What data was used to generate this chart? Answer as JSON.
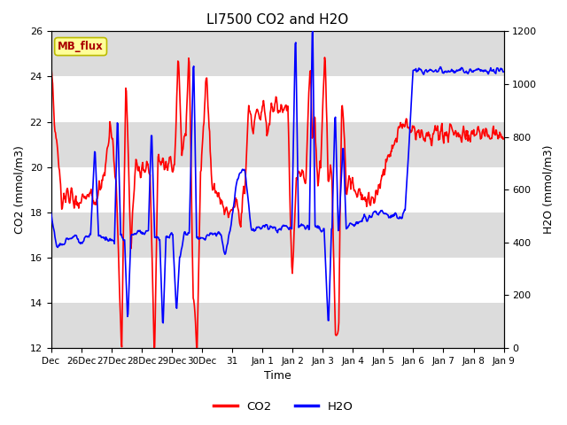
{
  "title": "LI7500 CO2 and H2O",
  "xlabel": "Time",
  "ylabel_left": "CO2 (mmol/m3)",
  "ylabel_right": "H2O (mmol/m3)",
  "ylim_left": [
    12,
    26
  ],
  "ylim_right": [
    0,
    1200
  ],
  "yticks_left": [
    12,
    14,
    16,
    18,
    20,
    22,
    24,
    26
  ],
  "yticks_right": [
    0,
    200,
    400,
    600,
    800,
    1000,
    1200
  ],
  "xtick_labels": [
    "Dec",
    "26Dec",
    "27Dec",
    "28Dec",
    "29Dec",
    "30Dec",
    "31",
    "Jan 1",
    "Jan 2",
    "Jan 3",
    "Jan 4",
    "Jan 5",
    "Jan 6",
    "Jan 7",
    "Jan 8",
    "Jan 9"
  ],
  "co2_color": "#FF0000",
  "h2o_color": "#0000FF",
  "legend_co2": "CO2",
  "legend_h2o": "H2O",
  "site_label": "MB_flux",
  "background_color": "#ffffff",
  "band_color": "#dcdcdc",
  "line_width": 1.2,
  "title_fontsize": 11
}
